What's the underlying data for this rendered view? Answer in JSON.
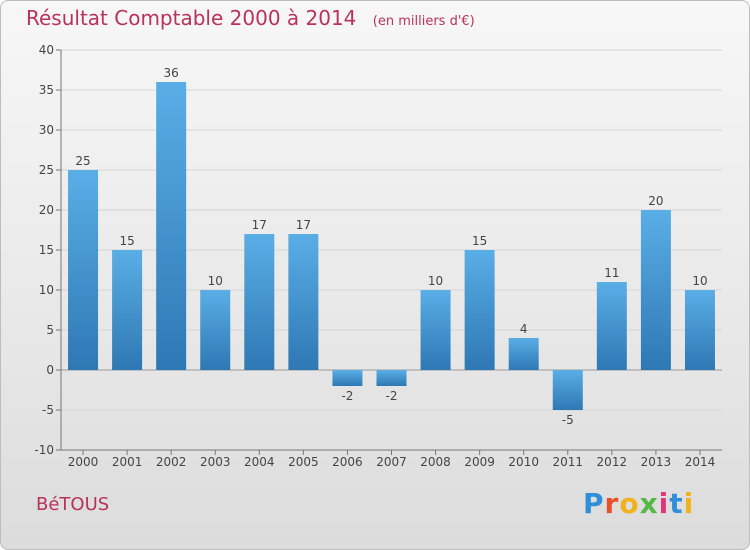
{
  "chart_data": {
    "type": "bar",
    "title": "Résultat Comptable 2000 à 2014",
    "subtitle": "(en milliers d'€)",
    "categories": [
      "2000",
      "2001",
      "2002",
      "2003",
      "2004",
      "2005",
      "2006",
      "2007",
      "2008",
      "2009",
      "2010",
      "2011",
      "2012",
      "2013",
      "2014"
    ],
    "values": [
      25,
      15,
      36,
      10,
      17,
      17,
      -2,
      -2,
      10,
      15,
      4,
      -5,
      11,
      20,
      10
    ],
    "ylim": [
      -10,
      40
    ],
    "yticks": [
      -10,
      -5,
      0,
      5,
      10,
      15,
      20,
      25,
      30,
      35,
      40
    ],
    "grid": true,
    "xlabel": "",
    "ylabel": ""
  },
  "footer": {
    "town": "BéTOUS",
    "logo": "Proxiti"
  },
  "colors": {
    "title": "#b8325a",
    "bar_top": "#5aaee6",
    "bar_bottom": "#2e78b4"
  }
}
